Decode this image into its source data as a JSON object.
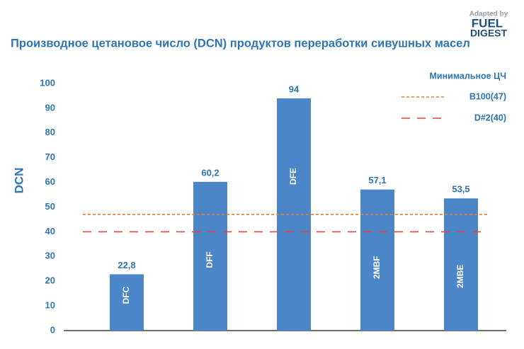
{
  "chart_data": {
    "type": "bar",
    "title": "Производное цетановое число (DCN) продуктов переработки сивушных масел",
    "y_label": "DCN",
    "categories": [
      "DFC",
      "DFF",
      "DFE",
      "2MBF",
      "2MBE"
    ],
    "values": [
      22.8,
      60.2,
      94,
      57.1,
      53.5
    ],
    "value_labels": [
      "22,8",
      "60,2",
      "94",
      "57,1",
      "53,5"
    ],
    "color": "#4a86c8",
    "ylim": [
      0,
      100
    ],
    "yticks": [
      0,
      10,
      20,
      30,
      40,
      50,
      60,
      70,
      80,
      90,
      100
    ],
    "grid": false,
    "legend_title": "Минимальное ЦЧ",
    "legend_position": "upper right",
    "reference_lines": [
      {
        "name": "B100(47)",
        "value": 47,
        "color": "#ed7d31",
        "style": "dotted"
      },
      {
        "name": "D#2(40)",
        "value": 40,
        "color": "#e8463a",
        "style": "dashed"
      }
    ]
  },
  "logo": {
    "caption": "Adapted by",
    "line1": "FUEL",
    "line2": "DIGEST"
  }
}
